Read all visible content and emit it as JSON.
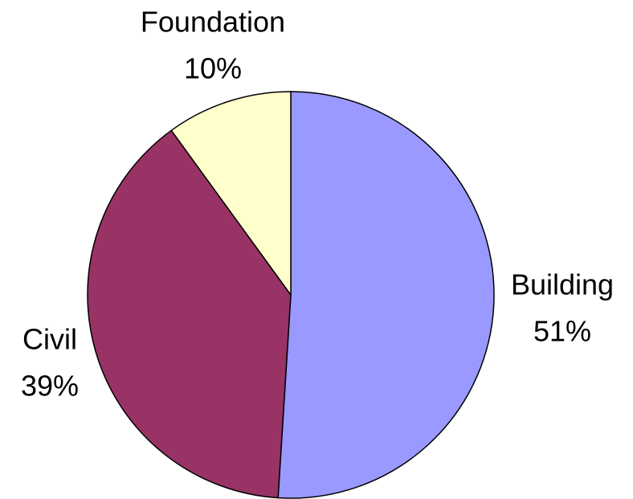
{
  "chart_data": {
    "type": "pie",
    "categories": [
      "Building",
      "Civil",
      "Foundation"
    ],
    "values": [
      51,
      39,
      10
    ],
    "value_labels": [
      "51%",
      "39%",
      "10%"
    ],
    "colors": [
      "#9999ff",
      "#993366",
      "#ffffcc"
    ]
  }
}
